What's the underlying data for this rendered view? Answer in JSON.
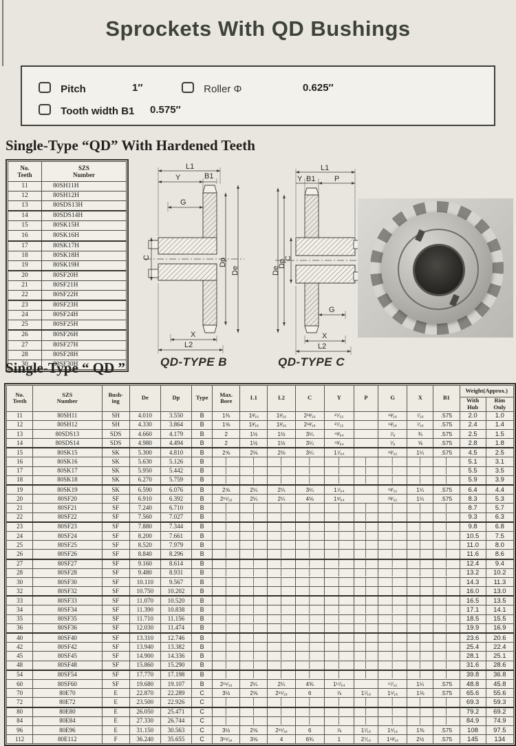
{
  "page": {
    "title": "Sprockets With QD Bushings"
  },
  "specs": {
    "pitch_label": "Pitch",
    "pitch_value": "1″",
    "roller_label": "Roller Φ",
    "roller_value": "0.625″",
    "tooth_width_label": "Tooth width B1",
    "tooth_width_value": "0.575″"
  },
  "section1": {
    "heading": "Single-Type “QD”  With Hardened Teeth"
  },
  "section2": {
    "heading": "Single-Type “ QD ”"
  },
  "teeth_table": {
    "headers": [
      "No.\nTeeth",
      "SZS\nNumber"
    ],
    "rows": [
      [
        "11",
        "80SH11H"
      ],
      [
        "12",
        "80SH12H"
      ],
      [
        "13",
        "80SDS13H"
      ],
      [
        "14",
        "80SDS14H"
      ],
      [
        "15",
        "80SK15H"
      ],
      [
        "16",
        "80SK16H"
      ],
      [
        "17",
        "80SK17H"
      ],
      [
        "18",
        "80SK18H"
      ],
      [
        "19",
        "80SK19H"
      ],
      [
        "20",
        "80SF20H"
      ],
      [
        "21",
        "80SF21H"
      ],
      [
        "22",
        "80SF22H"
      ],
      [
        "23",
        "80SF23H"
      ],
      [
        "24",
        "80SF24H"
      ],
      [
        "25",
        "80SF25H"
      ],
      [
        "26",
        "80SF26H"
      ],
      [
        "27",
        "80SF27H"
      ],
      [
        "28",
        "80SF28H"
      ],
      [
        "30",
        "80SF30H"
      ]
    ]
  },
  "diagram_b": {
    "caption": "QD-TYPE B",
    "labels": {
      "l1": "L1",
      "y": "Y",
      "b1": "B1",
      "g": "G",
      "c": "C",
      "dp": "Dp",
      "de": "De",
      "x": "X",
      "l2": "L2"
    }
  },
  "diagram_c": {
    "caption": "QD-TYPE C",
    "labels": {
      "l1": "L1",
      "y": "Y",
      "b1": "B1",
      "p": "P",
      "de": "De",
      "dp": "Dp",
      "c": "C",
      "g": "G",
      "x": "X",
      "l2": "L2"
    }
  },
  "main_table": {
    "columns": [
      "No.\nTeeth",
      "SZS\nNumber",
      "Bush-\ning",
      "De",
      "Dp",
      "Type",
      "Max.\nBore",
      "L1",
      "L2",
      "C",
      "Y",
      "P",
      "G",
      "X",
      "B1"
    ],
    "weight_header": "Weight(Approx.)",
    "weight_sub": [
      "With\nHub",
      "Rim\nOnly"
    ],
    "rows": [
      [
        "11",
        "80SH11",
        "SH",
        "4.010",
        "3.550",
        "B",
        "1⅜",
        "1³⁄₁₆",
        "1³⁄₁₆",
        "2¹³⁄₁₆",
        "²⁷⁄₃₂",
        "",
        "¹³⁄₁₆",
        "⁷⁄₁₆",
        ".575",
        "2.0",
        "1.0"
      ],
      [
        "12",
        "80SH12",
        "SH",
        "4.330",
        "3.864",
        "B",
        "1⅝",
        "1³⁄₁₆",
        "1³⁄₁₆",
        "2¹³⁄₁₆",
        "²⁷⁄₃₂",
        "",
        "¹³⁄₁₆",
        "⁷⁄₁₆",
        ".575",
        "2.4",
        "1.4"
      ],
      [
        "13",
        "80SDS13",
        "SDS",
        "4.660",
        "4.179",
        "B",
        "2",
        "1½",
        "1½",
        "3¼",
        "⁴³⁄₆₄",
        "",
        "⁷⁄₈",
        "¾",
        ".575",
        "2.5",
        "1.5"
      ],
      [
        "14",
        "80SDS14",
        "SDS",
        "4.980",
        "4.494",
        "B",
        "2",
        "1½",
        "1½",
        "3¼",
        "⁴³⁄₆₄",
        "",
        "⁷⁄₈",
        "⅝",
        ".575",
        "2.8",
        "1.8"
      ],
      [
        "15",
        "80SK15",
        "SK",
        "5.300",
        "4.810",
        "B",
        "2⅝",
        "2⅛",
        "2⅛",
        "3¼",
        "1⁷⁄₆₄",
        "",
        "¹³⁄₃₂",
        "1¼",
        ".575",
        "4.5",
        "2.5"
      ],
      [
        "16",
        "80SK16",
        "SK",
        "5.630",
        "5.126",
        "B",
        "│",
        "│",
        "│",
        "│",
        "│",
        "│",
        "│",
        "│",
        "│",
        "5.1",
        "3.1"
      ],
      [
        "17",
        "80SK17",
        "SK",
        "5.950",
        "5.442",
        "B",
        "│",
        "│",
        "│",
        "│",
        "│",
        "│",
        "│",
        "│",
        "│",
        "5.5",
        "3.5"
      ],
      [
        "18",
        "80SK18",
        "SK",
        "6.270",
        "5.759",
        "B",
        "│",
        "│",
        "│",
        "│",
        "│",
        "│",
        "│",
        "│",
        "│",
        "5.9",
        "3.9"
      ],
      [
        "19",
        "80SK19",
        "SK",
        "6.590",
        "6.076",
        "B",
        "2⅝",
        "2¼",
        "2¼",
        "3¼",
        "1⁷⁄₆₄",
        "",
        "¹³⁄₃₂",
        "1¼",
        ".575",
        "6.4",
        "4.4"
      ],
      [
        "20",
        "80SF20",
        "SF",
        "6.910",
        "6.392",
        "B",
        "2¹⁵⁄₁₆",
        "2¼",
        "2¼",
        "4⅛",
        "1⁹⁄₆₄",
        "",
        "²³⁄₃₂",
        "1¼",
        ".575",
        "8.3",
        "5.3"
      ],
      [
        "21",
        "80SF21",
        "SF",
        "7.240",
        "6.710",
        "B",
        "│",
        "│",
        "│",
        "│",
        "│",
        "│",
        "│",
        "│",
        "│",
        "8.7",
        "5.7"
      ],
      [
        "22",
        "80SF22",
        "SF",
        "7.560",
        "7.027",
        "B",
        "│",
        "│",
        "│",
        "│",
        "│",
        "│",
        "│",
        "│",
        "│",
        "9.3",
        "6.3"
      ],
      [
        "23",
        "80SF23",
        "SF",
        "7.880",
        "7.344",
        "B",
        "│",
        "│",
        "│",
        "│",
        "│",
        "│",
        "│",
        "│",
        "│",
        "9.8",
        "6.8"
      ],
      [
        "24",
        "80SF24",
        "SF",
        "8.200",
        "7.661",
        "B",
        "│",
        "│",
        "│",
        "│",
        "│",
        "│",
        "│",
        "│",
        "│",
        "10.5",
        "7.5"
      ],
      [
        "25",
        "80SF25",
        "SF",
        "8.520",
        "7.979",
        "B",
        "│",
        "│",
        "│",
        "│",
        "│",
        "│",
        "│",
        "│",
        "│",
        "11.0",
        "8.0"
      ],
      [
        "26",
        "80SF26",
        "SF",
        "8.840",
        "8.296",
        "B",
        "│",
        "│",
        "│",
        "│",
        "│",
        "│",
        "│",
        "│",
        "│",
        "11.6",
        "8.6"
      ],
      [
        "27",
        "80SF27",
        "SF",
        "9.160",
        "8.614",
        "B",
        "│",
        "│",
        "│",
        "│",
        "│",
        "│",
        "│",
        "│",
        "│",
        "12.4",
        "9.4"
      ],
      [
        "28",
        "80SF28",
        "SF",
        "9.480",
        "8.931",
        "B",
        "│",
        "│",
        "│",
        "│",
        "│",
        "│",
        "│",
        "│",
        "│",
        "13.2",
        "10.2"
      ],
      [
        "30",
        "80SF30",
        "SF",
        "10.110",
        "9.567",
        "B",
        "│",
        "│",
        "│",
        "│",
        "│",
        "│",
        "│",
        "│",
        "│",
        "14.3",
        "11.3"
      ],
      [
        "32",
        "80SF32",
        "SF",
        "10.750",
        "10.202",
        "B",
        "│",
        "│",
        "│",
        "│",
        "│",
        "│",
        "│",
        "│",
        "│",
        "16.0",
        "13.0"
      ],
      [
        "33",
        "80SF33",
        "SF",
        "11.070",
        "10.520",
        "B",
        "│",
        "│",
        "│",
        "│",
        "│",
        "│",
        "│",
        "│",
        "│",
        "16.5",
        "13.5"
      ],
      [
        "34",
        "80SF34",
        "SF",
        "11.390",
        "10.838",
        "B",
        "│",
        "│",
        "│",
        "│",
        "│",
        "│",
        "│",
        "│",
        "│",
        "17.1",
        "14.1"
      ],
      [
        "35",
        "80SF35",
        "SF",
        "11.710",
        "11.156",
        "B",
        "│",
        "│",
        "│",
        "│",
        "│",
        "│",
        "│",
        "│",
        "│",
        "18.5",
        "15.5"
      ],
      [
        "36",
        "80SF36",
        "SF",
        "12.030",
        "11.474",
        "B",
        "│",
        "│",
        "│",
        "│",
        "│",
        "│",
        "│",
        "│",
        "│",
        "19.9",
        "16.9"
      ],
      [
        "40",
        "80SF40",
        "SF",
        "13.310",
        "12.746",
        "B",
        "│",
        "│",
        "│",
        "│",
        "│",
        "│",
        "│",
        "│",
        "│",
        "23.6",
        "20.6"
      ],
      [
        "42",
        "80SF42",
        "SF",
        "13.940",
        "13.382",
        "B",
        "│",
        "│",
        "│",
        "│",
        "│",
        "│",
        "│",
        "│",
        "│",
        "25.4",
        "22.4"
      ],
      [
        "45",
        "80SF45",
        "SF",
        "14.900",
        "14.336",
        "B",
        "│",
        "│",
        "│",
        "│",
        "│",
        "│",
        "│",
        "│",
        "│",
        "28.1",
        "25.1"
      ],
      [
        "48",
        "80SF48",
        "SF",
        "15.860",
        "15.290",
        "B",
        "│",
        "│",
        "│",
        "│",
        "│",
        "│",
        "│",
        "│",
        "│",
        "31.6",
        "28.6"
      ],
      [
        "54",
        "80SF54",
        "SF",
        "17.770",
        "17.198",
        "B",
        "│",
        "│",
        "│",
        "│",
        "│",
        "│",
        "│",
        "│",
        "│",
        "39.8",
        "36.8"
      ],
      [
        "60",
        "80SF60",
        "SF",
        "19.680",
        "19.107",
        "B",
        "2¹⁵⁄₁₆",
        "2¼",
        "2¼",
        "4⅜",
        "1¹⁷⁄₆₄",
        "",
        "¹⁷⁄₃₂",
        "1¼",
        ".575",
        "48.8",
        "45.8"
      ],
      [
        "70",
        "80E70",
        "E",
        "22.870",
        "22.289",
        "C",
        "3½",
        "2⅝",
        "2¹⁵⁄₁₆",
        "6",
        "⅞",
        "1⁷⁄₁₆",
        "1⁵⁄₁₆",
        "1⅛",
        ".575",
        "65.6",
        "55.6"
      ],
      [
        "72",
        "80E72",
        "E",
        "23.500",
        "22.926",
        "C",
        "│",
        "│",
        "│",
        "│",
        "│",
        "│",
        "│",
        "│",
        "│",
        "69.3",
        "59.3"
      ],
      [
        "80",
        "80E80",
        "E",
        "26.050",
        "25.471",
        "C",
        "│",
        "│",
        "│",
        "│",
        "│",
        "│",
        "│",
        "│",
        "│",
        "79.2",
        "69.2"
      ],
      [
        "84",
        "80E84",
        "E",
        "27.330",
        "26.744",
        "C",
        "│",
        "│",
        "│",
        "│",
        "│",
        "│",
        "│",
        "│",
        "│",
        "84.9",
        "74.9"
      ],
      [
        "96",
        "80E96",
        "E",
        "31.150",
        "30.563",
        "C",
        "3½",
        "2⅝",
        "2¹⁵⁄₁₆",
        "6",
        "⅞",
        "1⁷⁄₁₆",
        "1⁵⁄₁₆",
        "1⅜",
        ".575",
        "108",
        "97.5"
      ],
      [
        "112",
        "80E112",
        "F",
        "36.240",
        "35.655",
        "C",
        "3¹⁵⁄₁₆",
        "3⅝",
        "4",
        "6¾",
        "1",
        "2⁷⁄₁₆",
        "1¹³⁄₁₆",
        "2½",
        ".575",
        "145",
        "134"
      ]
    ]
  }
}
